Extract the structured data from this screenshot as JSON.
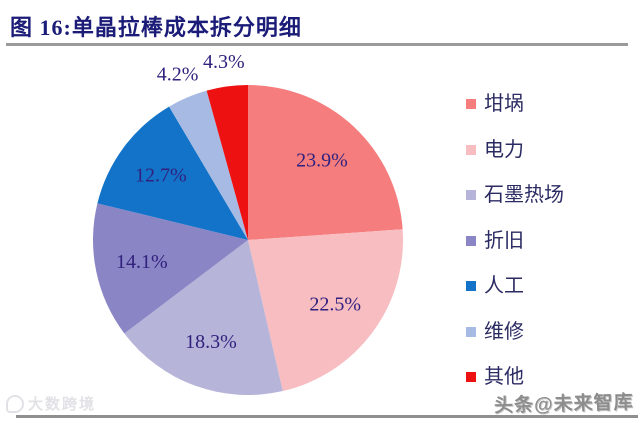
{
  "figure": {
    "title": "图 16:单晶拉棒成本拆分明细",
    "watermark_bottom_left": "大数跨境",
    "watermark_bottom_right": "头条@未来智库"
  },
  "colors": {
    "title_text": "#1b1b78",
    "slice_label_text": "#31217e",
    "legend_text": "#2b2b63",
    "top_divider": "#9b9b9b",
    "bottom_divider": "#8f8f8f",
    "watermark_left": "#e2e2e6",
    "watermark_right": "#8d8d8d"
  },
  "chart_data": {
    "type": "pie",
    "title": "图 16:单晶拉棒成本拆分明细",
    "start_angle_deg": 0,
    "direction": "clockwise",
    "legend_position": "right",
    "label_style": "percent, outside callout for slices under 5%",
    "slices": [
      {
        "label": "坩埚",
        "value": 23.9,
        "display": "23.9%",
        "color": "#f57d7d"
      },
      {
        "label": "电力",
        "value": 22.5,
        "display": "22.5%",
        "color": "#f7bdc1"
      },
      {
        "label": "石墨热场",
        "value": 18.3,
        "display": "18.3%",
        "color": "#b7b4d9"
      },
      {
        "label": "折旧",
        "value": 14.1,
        "display": "14.1%",
        "color": "#8a85c5"
      },
      {
        "label": "人工",
        "value": 12.7,
        "display": "12.7%",
        "color": "#1273c8"
      },
      {
        "label": "维修",
        "value": 4.2,
        "display": "4.2%",
        "color": "#a6bae3"
      },
      {
        "label": "其他",
        "value": 4.3,
        "display": "4.3%",
        "color": "#ee1111"
      }
    ]
  }
}
